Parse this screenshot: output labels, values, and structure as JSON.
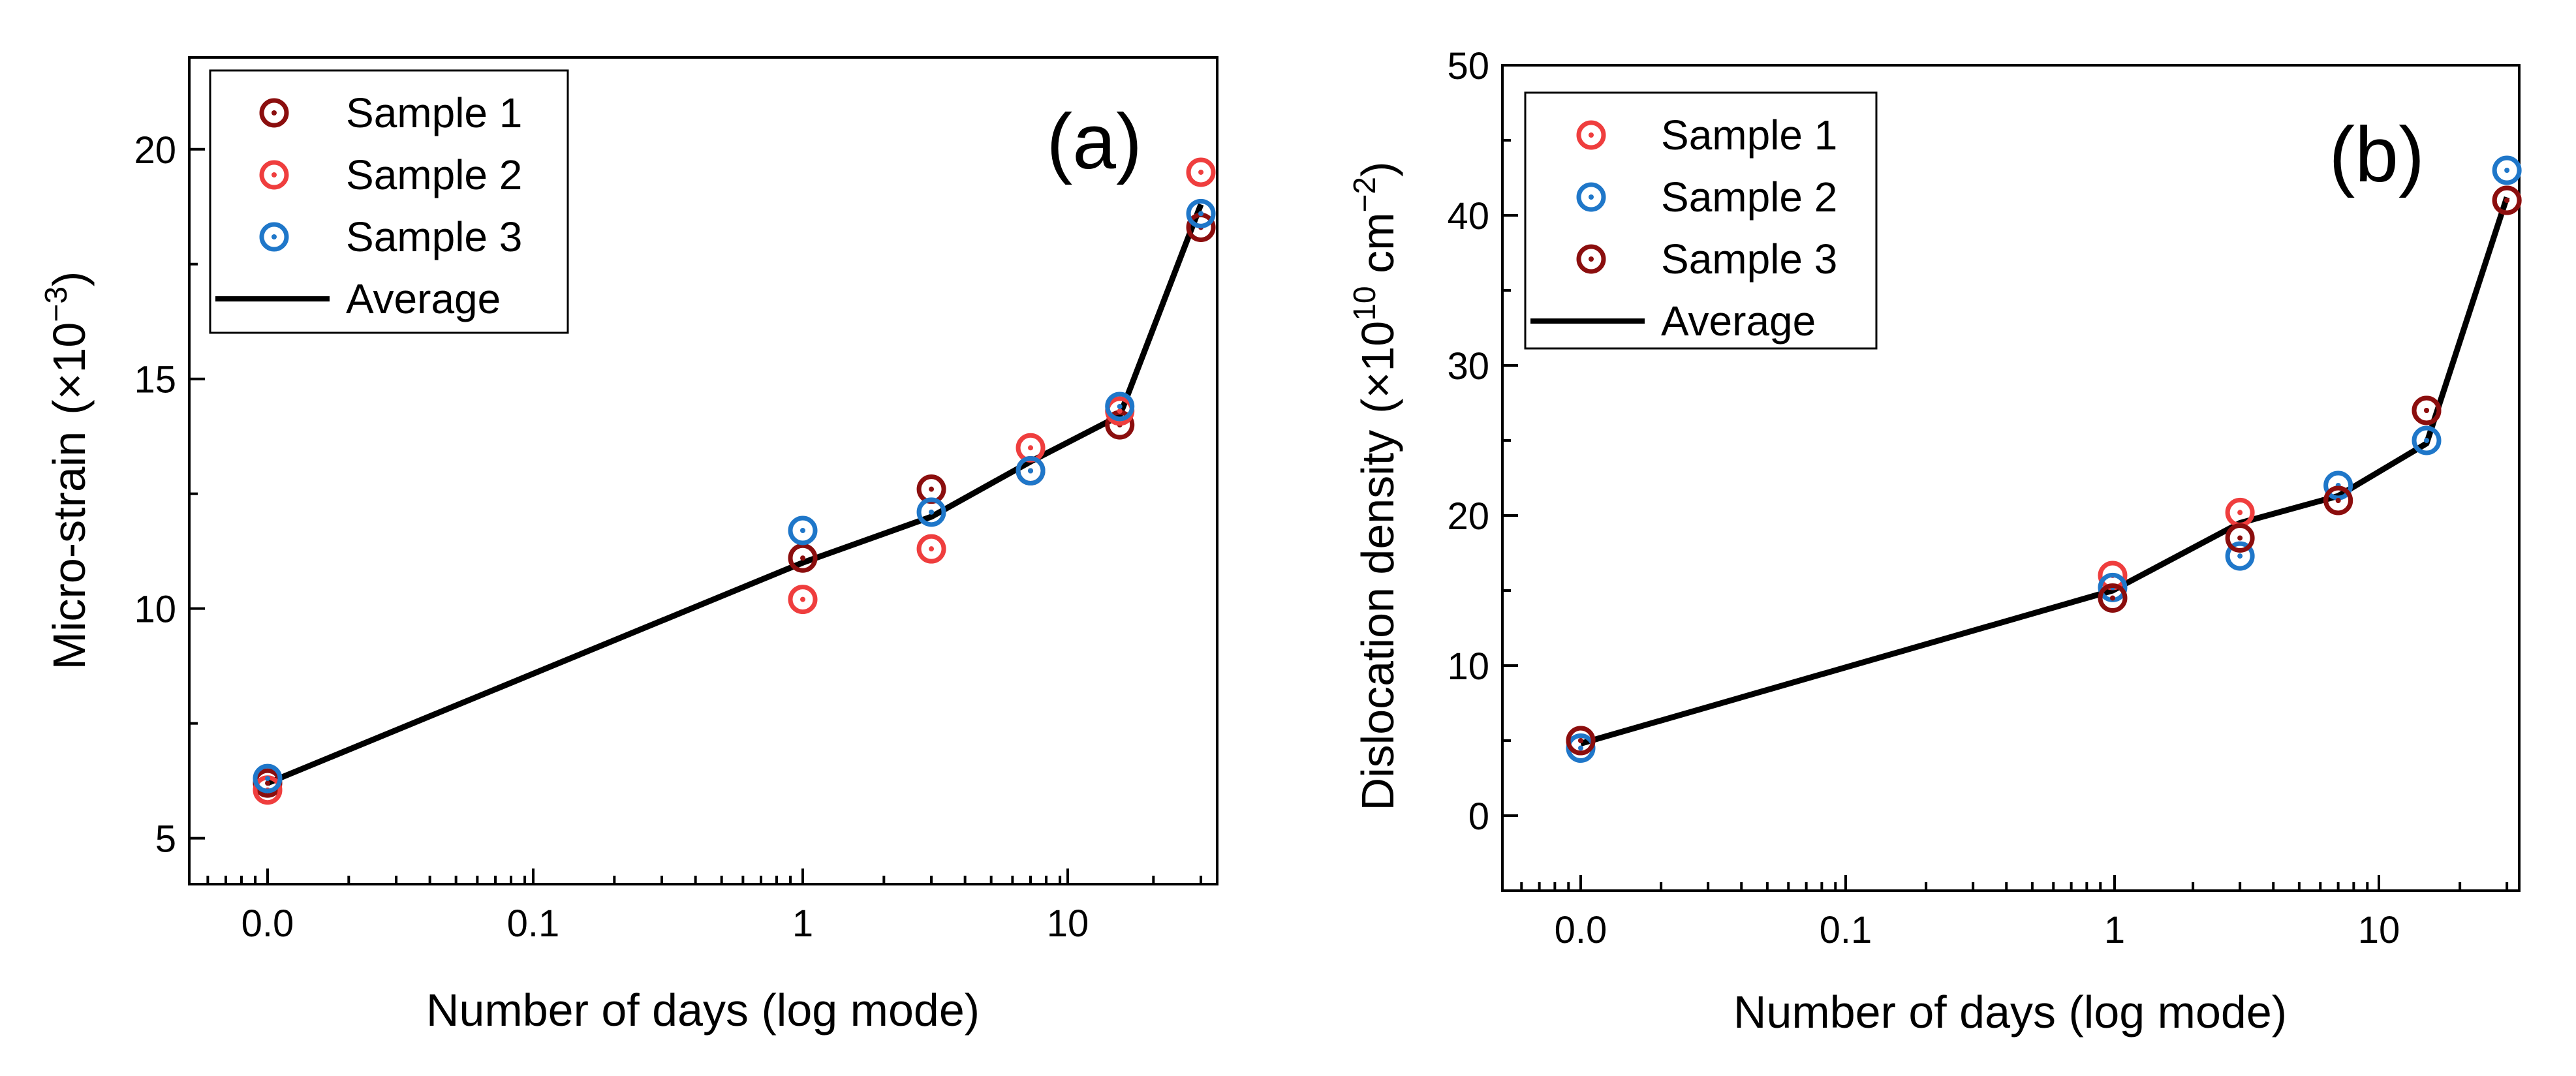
{
  "chart_data": [
    {
      "type": "scatter",
      "panel_label": "(a)",
      "xlabel": "Number of days (log mode)",
      "ylabel": "Micro-strain",
      "ylabel_unit": "(×10",
      "ylabel_exp": "−3",
      "ylabel_close": ")",
      "x_tick_labels": [
        "0.0",
        "0.1",
        "1",
        "10"
      ],
      "ylim": [
        4,
        22
      ],
      "y_ticks": [
        5,
        10,
        15,
        20
      ],
      "y_tick_labels": [
        "5",
        "10",
        "15",
        "20"
      ],
      "x_positions": [
        0.01,
        1,
        3,
        7,
        15,
        30
      ],
      "series": [
        {
          "name": "Sample 1",
          "color": "#8b0e0e",
          "x": [
            0.01,
            1,
            3,
            7,
            15,
            30
          ],
          "values": [
            6.2,
            11.1,
            12.6,
            13.0,
            14.0,
            18.3
          ]
        },
        {
          "name": "Sample 2",
          "color": "#ef3e3e",
          "x": [
            0.01,
            1,
            3,
            7,
            15,
            30
          ],
          "values": [
            6.05,
            10.2,
            11.3,
            13.5,
            14.3,
            19.5
          ]
        },
        {
          "name": "Sample 3",
          "color": "#1f77c9",
          "x": [
            0.01,
            1,
            3,
            7,
            15,
            30
          ],
          "values": [
            6.3,
            11.7,
            12.1,
            13.0,
            14.4,
            18.6
          ]
        }
      ],
      "average": {
        "name": "Average",
        "color": "#000000",
        "x": [
          0.01,
          1,
          3,
          7,
          15,
          30
        ],
        "values": [
          6.2,
          11.0,
          12.0,
          13.2,
          14.2,
          18.8
        ]
      },
      "legend": [
        "Sample 1",
        "Sample 2",
        "Sample 3",
        "Average"
      ],
      "legend_position": "top-left"
    },
    {
      "type": "scatter",
      "panel_label": "(b)",
      "xlabel": "Number of days (log mode)",
      "ylabel": "Dislocation  density",
      "ylabel_unit": "(×10",
      "ylabel_exp": "10",
      "ylabel_mid": " cm",
      "ylabel_exp2": "−2",
      "ylabel_close": ")",
      "x_tick_labels": [
        "0.0",
        "0.1",
        "1",
        "10"
      ],
      "ylim": [
        -5,
        50
      ],
      "y_ticks": [
        0,
        10,
        20,
        30,
        40,
        50
      ],
      "y_tick_labels": [
        "0",
        "10",
        "20",
        "30",
        "40",
        "50"
      ],
      "x_positions": [
        0.01,
        1,
        3,
        7,
        15,
        30
      ],
      "series": [
        {
          "name": "Sample 1",
          "color": "#ef3e3e",
          "x": [
            0.01,
            1,
            3,
            7,
            15,
            30
          ],
          "values": [
            5.0,
            16.0,
            20.2,
            21.0,
            27.0,
            41.0
          ]
        },
        {
          "name": "Sample 2",
          "color": "#1f77c9",
          "x": [
            0.01,
            1,
            3,
            7,
            15,
            30
          ],
          "values": [
            4.5,
            15.2,
            17.3,
            22.0,
            25.0,
            43.0
          ]
        },
        {
          "name": "Sample 3",
          "color": "#8b0e0e",
          "x": [
            0.01,
            1,
            3,
            7,
            15,
            30
          ],
          "values": [
            5.0,
            14.5,
            18.5,
            21.0,
            27.0,
            41.0
          ]
        }
      ],
      "average": {
        "name": "Average",
        "color": "#000000",
        "x": [
          0.01,
          1,
          3,
          7,
          15,
          30
        ],
        "values": [
          4.8,
          15.0,
          19.5,
          21.3,
          24.8,
          41.2
        ]
      },
      "legend": [
        "Sample 1",
        "Sample 2",
        "Sample 3",
        "Average"
      ],
      "legend_position": "top-left"
    }
  ]
}
